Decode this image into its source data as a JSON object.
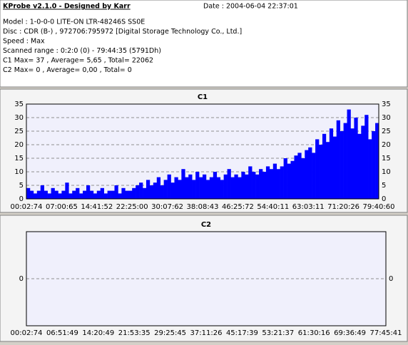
{
  "header": {
    "title": "KProbe v2.1.0 - Designed by Karr",
    "date": "Date : 2004-06-04 22:37:01",
    "lines": [
      "Model : 1-0-0-0 LITE-ON LTR-48246S      SS0E",
      "Disc : CDR (B-) , 972706:795972 [Digital Storage Technology Co., Ltd.]",
      "Speed : Max",
      "Scanned range : 0:2:0 (0) - 79:44:35 (5791Dh)",
      "C1 Max= 37 , Average= 5,65 , Total= 22062",
      "C2 Max= 0 , Average= 0,00 , Total= 0"
    ]
  },
  "chart_data": [
    {
      "type": "bar",
      "title": "C1",
      "color": "#0000ff",
      "grid": true,
      "ylim": [
        0,
        35
      ],
      "yticks": [
        0,
        5,
        10,
        15,
        20,
        25,
        30,
        35
      ],
      "x_labels": [
        "00:02:74",
        "07:00:65",
        "14:41:52",
        "22:25:00",
        "30:07:62",
        "38:08:43",
        "46:25:72",
        "54:40:11",
        "63:03:11",
        "71:20:26",
        "79:40:60"
      ],
      "values": [
        4,
        3,
        2,
        3,
        5,
        3,
        2,
        4,
        3,
        2,
        3,
        6,
        2,
        3,
        4,
        2,
        3,
        5,
        3,
        2,
        3,
        4,
        2,
        3,
        3,
        5,
        2,
        4,
        3,
        3,
        4,
        5,
        6,
        4,
        7,
        5,
        6,
        8,
        5,
        7,
        9,
        6,
        8,
        7,
        11,
        8,
        9,
        7,
        10,
        8,
        9,
        7,
        8,
        10,
        8,
        7,
        9,
        11,
        8,
        9,
        8,
        10,
        9,
        12,
        10,
        9,
        11,
        10,
        12,
        11,
        13,
        11,
        12,
        15,
        13,
        14,
        16,
        17,
        15,
        18,
        19,
        17,
        22,
        20,
        24,
        21,
        26,
        23,
        29,
        25,
        28,
        33,
        26,
        30,
        24,
        27,
        31,
        22,
        25,
        28
      ]
    },
    {
      "type": "bar",
      "title": "C2",
      "color": "#0000ff",
      "grid": true,
      "ylim": [
        -1,
        1
      ],
      "yticks": [
        0
      ],
      "x_labels": [
        "00:02:74",
        "06:51:49",
        "14:20:49",
        "21:53:35",
        "29:25:45",
        "37:11:26",
        "45:17:39",
        "53:21:37",
        "61:30:16",
        "69:36:49",
        "77:45:41"
      ]
    }
  ]
}
